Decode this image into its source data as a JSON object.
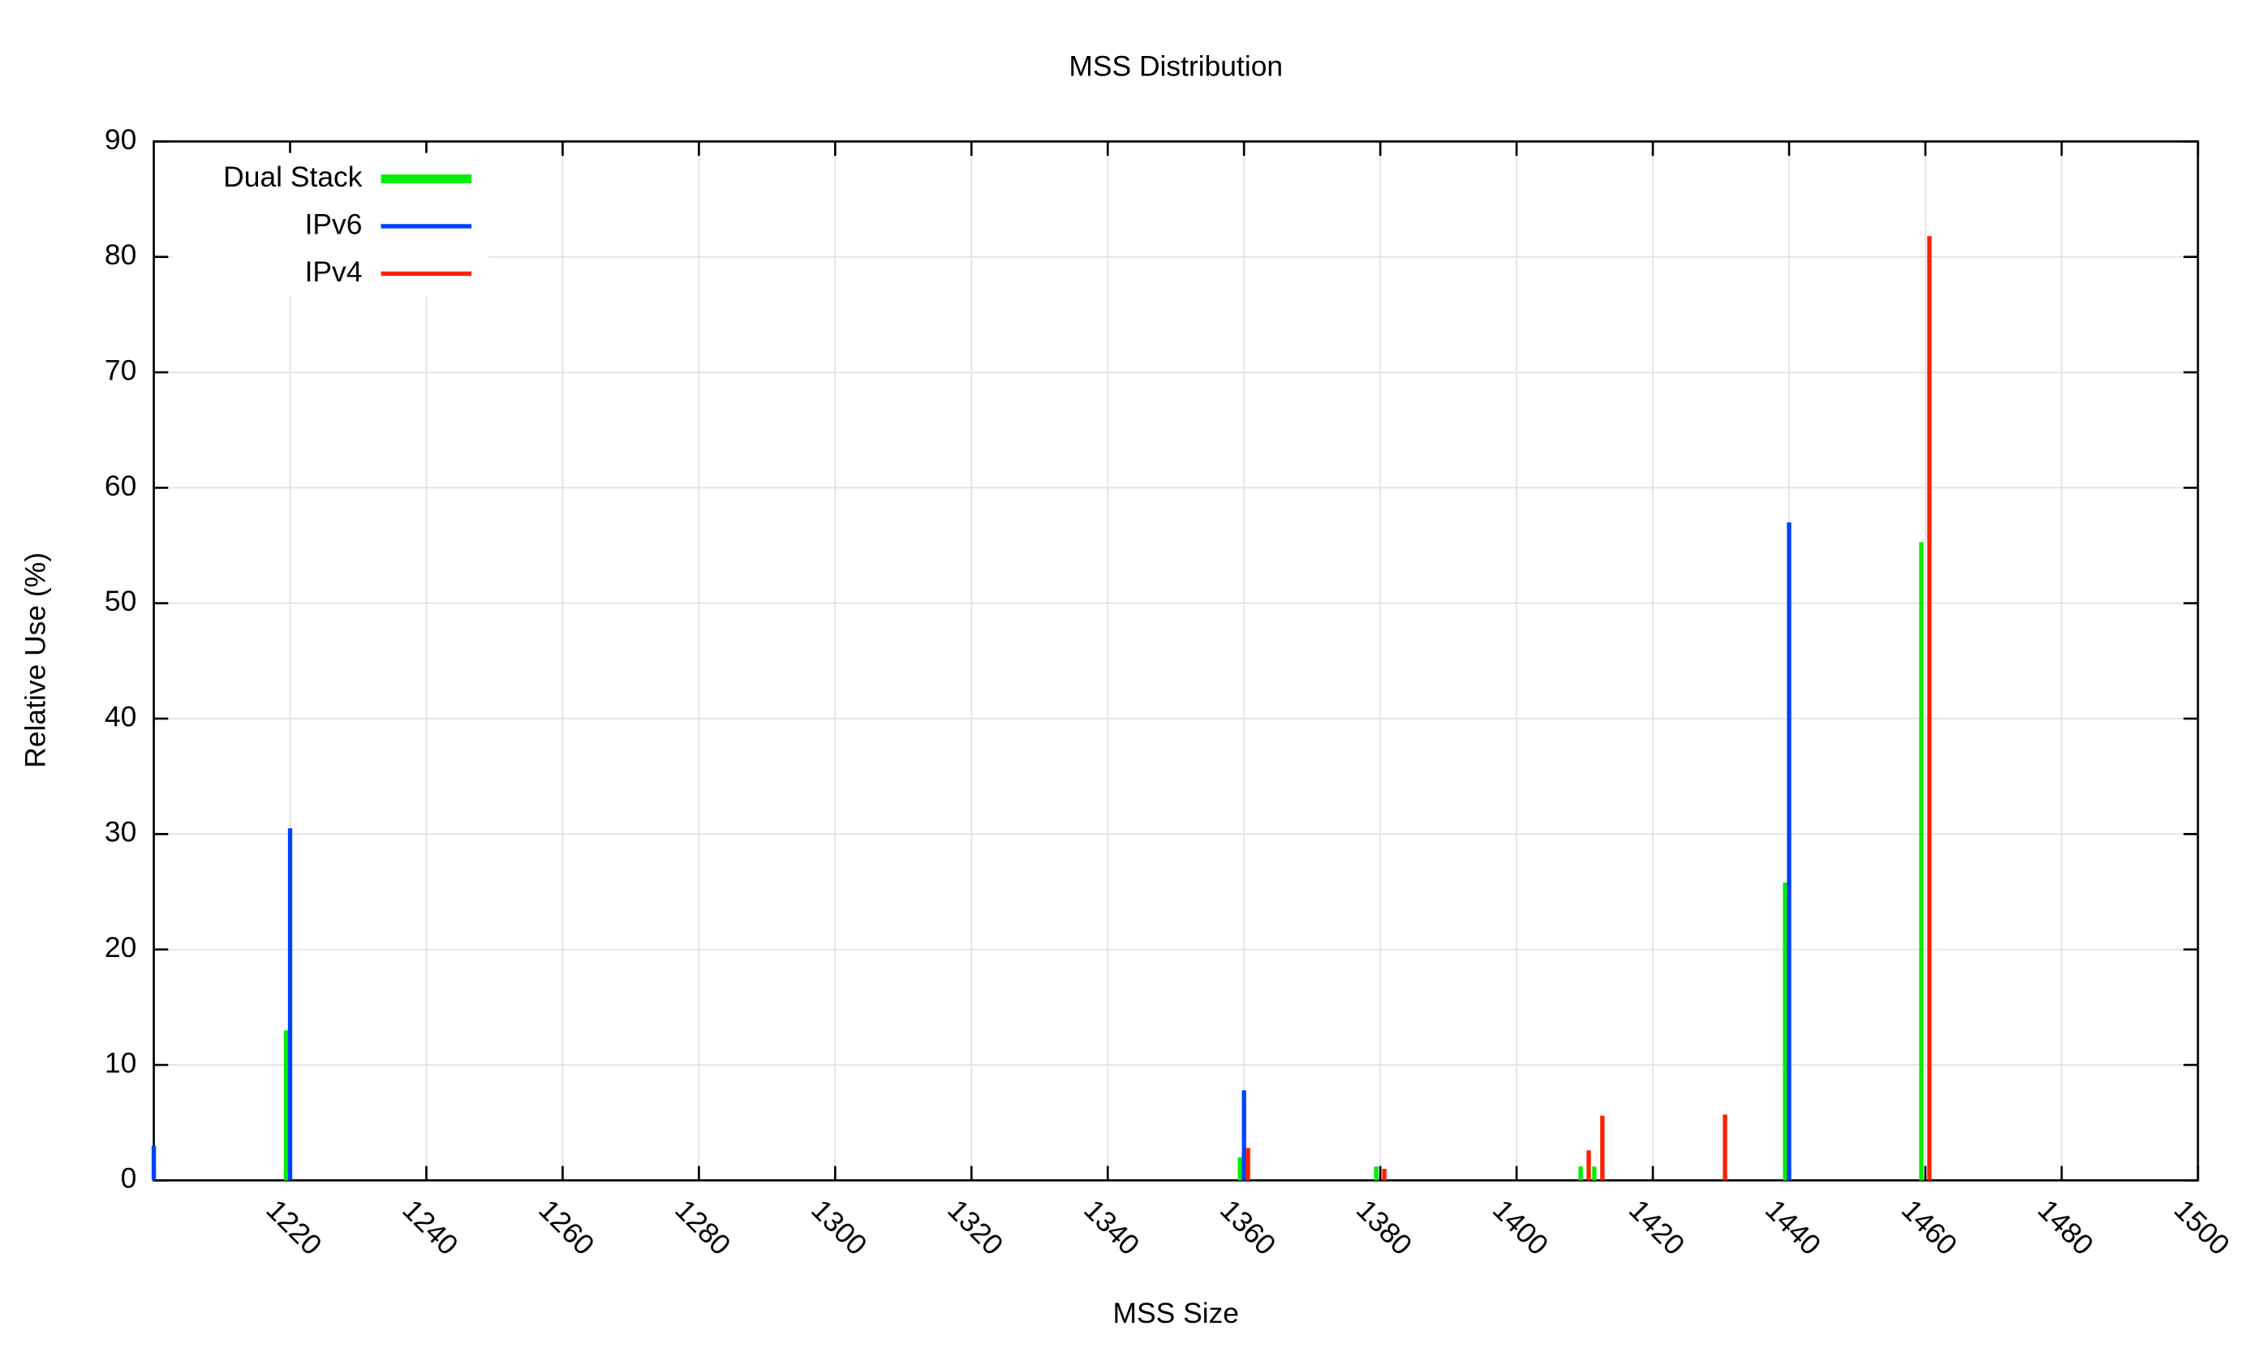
{
  "chart_data": {
    "type": "bar",
    "title": "MSS Distribution",
    "x_label": "MSS Size",
    "y_label": "Relative Use (%)",
    "x": [
      1200,
      1220,
      1360,
      1380,
      1410,
      1412,
      1430,
      1440,
      1460
    ],
    "series": [
      {
        "name": "Dual Stack",
        "color": "#00ee00",
        "values": [
          null,
          13,
          2,
          1.2,
          1.2,
          1.2,
          null,
          25.8,
          55.3
        ]
      },
      {
        "name": "IPv6",
        "color": "#0040ff",
        "values": [
          3,
          30.5,
          7.8,
          null,
          null,
          null,
          null,
          57,
          null
        ]
      },
      {
        "name": "IPv4",
        "color": "#ff2000",
        "values": [
          null,
          null,
          2.8,
          1,
          2.6,
          5.6,
          5.7,
          null,
          81.8
        ]
      }
    ],
    "xlim": [
      1200,
      1500
    ],
    "xticks": [
      1220,
      1240,
      1260,
      1280,
      1300,
      1320,
      1340,
      1360,
      1380,
      1400,
      1420,
      1440,
      1460,
      1480,
      1500
    ],
    "ylim": [
      0,
      90
    ],
    "yticks": [
      0,
      10,
      20,
      30,
      40,
      50,
      60,
      70,
      80,
      90
    ],
    "grid": true,
    "legend": "upper-left"
  }
}
